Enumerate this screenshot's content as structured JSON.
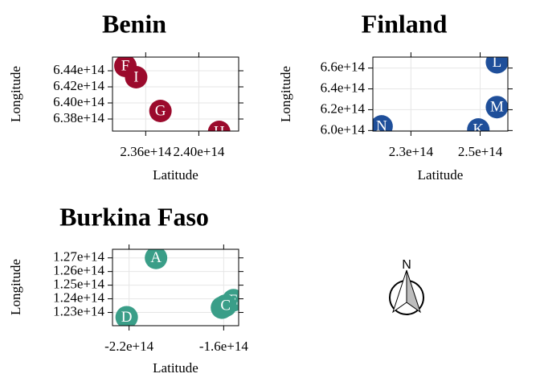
{
  "chart_data": [
    {
      "type": "scatter",
      "title": "Benin",
      "xlabel": "Latitude",
      "ylabel": "Longitude",
      "color": "#9B0A2C",
      "xlim": [
        233500000000000.0,
        243000000000000.0
      ],
      "ylim": [
        636500000000000.0,
        645700000000000.0
      ],
      "xticks": [
        236000000000000.0,
        240000000000000.0
      ],
      "xtick_labels": [
        "2.36e+14",
        "2.40e+14"
      ],
      "yticks": [
        638000000000000.0,
        640000000000000.0,
        642000000000000.0,
        644000000000000.0
      ],
      "ytick_labels": [
        "6.38e+14",
        "6.40e+14",
        "6.42e+14",
        "6.44e+14"
      ],
      "points": [
        {
          "label": "F",
          "x": 234470000000000.0,
          "y": 644600000000000.0
        },
        {
          "label": "I",
          "x": 235280000000000.0,
          "y": 643200000000000.0
        },
        {
          "label": "G",
          "x": 237110000000000.0,
          "y": 639000000000000.0
        },
        {
          "label": "H",
          "x": 241530000000000.0,
          "y": 636400000000000.0
        }
      ]
    },
    {
      "type": "scatter",
      "title": "Finland",
      "xlabel": "Latitude",
      "ylabel": "Longitude",
      "color": "#1F4F9A",
      "xlim": [
        219000000000000.0,
        258000000000000.0
      ],
      "ylim": [
        599500000000000.0,
        670500000000000.0
      ],
      "xticks": [
        230000000000000.0,
        250000000000000.0
      ],
      "xtick_labels": [
        "2.3e+14",
        "2.5e+14"
      ],
      "yticks": [
        600000000000000.0,
        620000000000000.0,
        640000000000000.0,
        660000000000000.0
      ],
      "ytick_labels": [
        "6.0e+14",
        "6.2e+14",
        "6.4e+14",
        "6.6e+14"
      ],
      "points": [
        {
          "label": "L",
          "x": 254850000000000.0,
          "y": 665500000000000.0
        },
        {
          "label": "M",
          "x": 254850000000000.0,
          "y": 622500000000000.0
        },
        {
          "label": "N",
          "x": 221520000000000.0,
          "y": 604000000000000.0
        },
        {
          "label": "K",
          "x": 249470000000000.0,
          "y": 601000000000000.0
        }
      ]
    },
    {
      "type": "scatter",
      "title": "Burkina Faso",
      "xlabel": "Latitude",
      "ylabel": "Longitude",
      "color": "#3A9E88",
      "xlim": [
        -230500000000000.0,
        -150500000000000.0
      ],
      "ylim": [
        122030000000000.0,
        127630000000000.0
      ],
      "xticks": [
        -220000000000000.0,
        -160000000000000.0
      ],
      "xtick_labels": [
        "-2.2e+14",
        "-1.6e+14"
      ],
      "yticks": [
        123000000000000.0,
        124000000000000.0,
        125000000000000.0,
        126000000000000.0,
        127000000000000.0
      ],
      "ytick_labels": [
        "1.23e+14",
        "1.24e+14",
        "1.25e+14",
        "1.26e+14",
        "1.27e+14"
      ],
      "points": [
        {
          "label": "A",
          "x": -202900000000000.0,
          "y": 127000000000000.0
        },
        {
          "label": "E",
          "x": -153800000000000.0,
          "y": 123900000000000.0
        },
        {
          "label": "B",
          "x": -161100000000000.0,
          "y": 123350000000000.0
        },
        {
          "label": "C",
          "x": -158800000000000.0,
          "y": 123500000000000.0
        },
        {
          "label": "D",
          "x": -221500000000000.0,
          "y": 122650000000000.0
        }
      ]
    }
  ],
  "north_arrow": {
    "label": "N",
    "icon": "north-arrow-icon"
  }
}
